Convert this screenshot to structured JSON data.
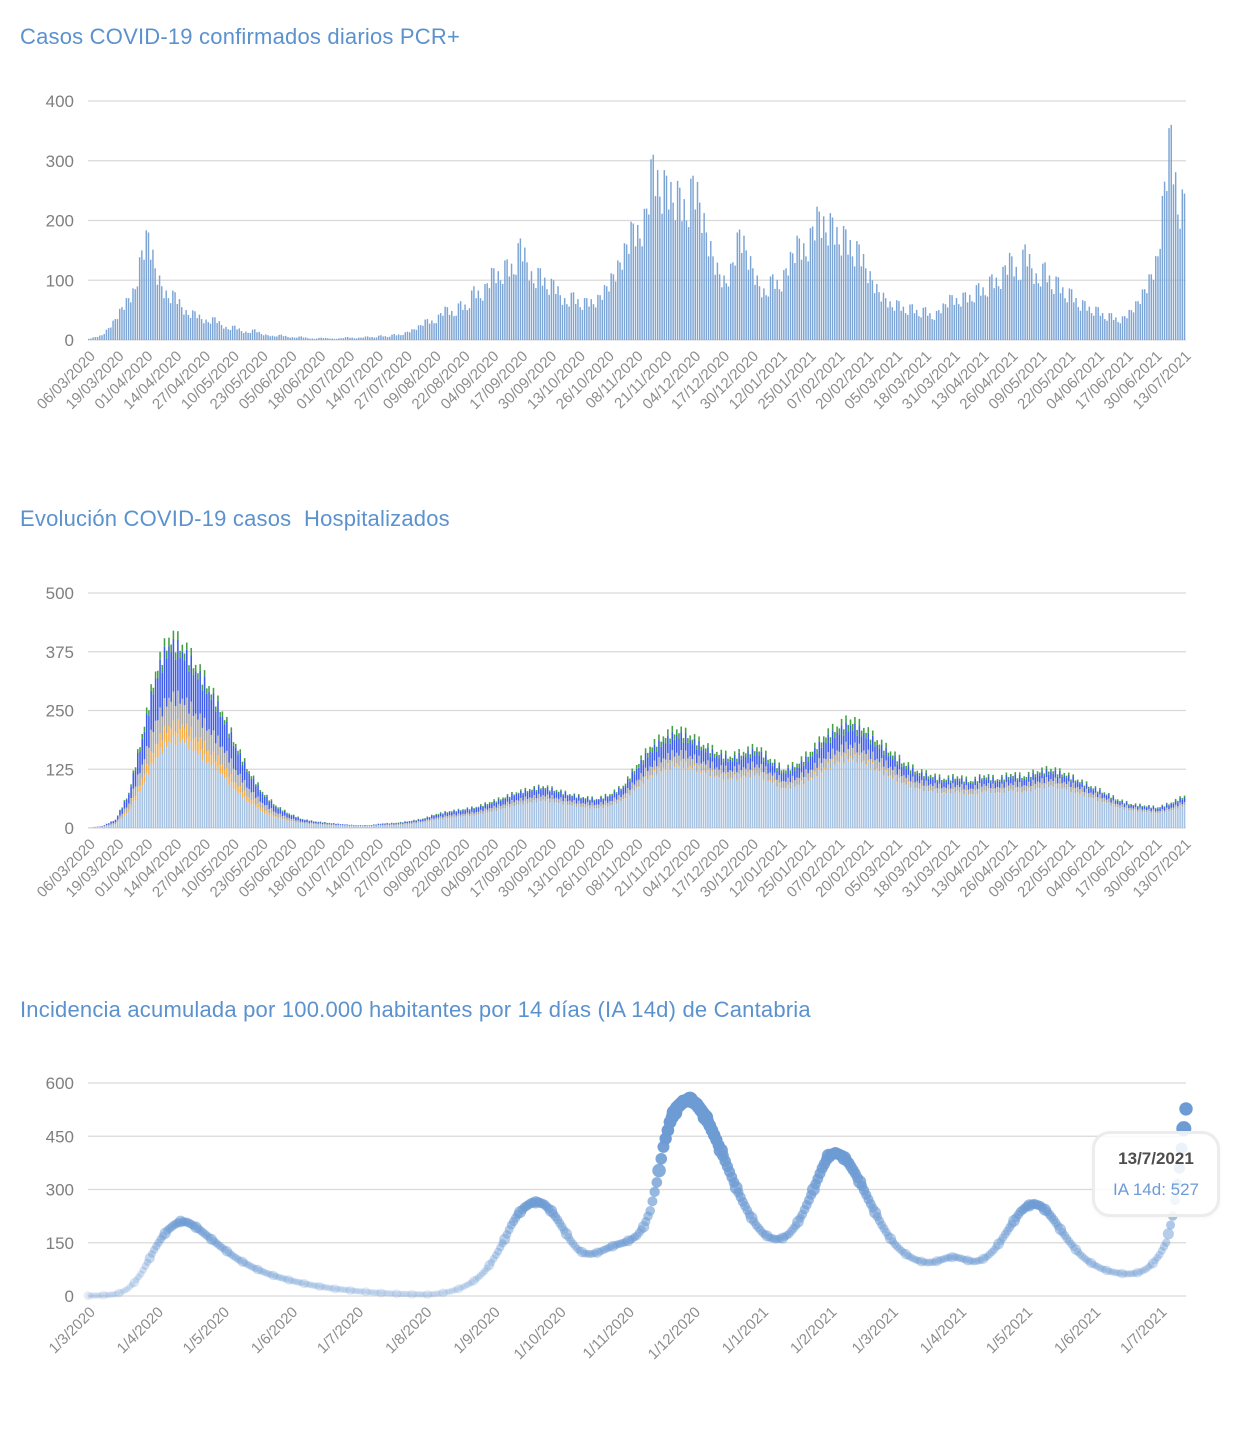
{
  "colors": {
    "title_text": "#5B92CE",
    "axis_text": "#7F7F7F",
    "tick_text": "#8C8C8C",
    "gridline": "#D9D9D9",
    "background": "#FFFFFF"
  },
  "tooltip": {
    "date_label": "13/7/2021",
    "value_label": "IA 14d: 527"
  },
  "chart_data": [
    {
      "type": "bar",
      "title": "Casos COVID-19 confirmados diarios PCR+",
      "xlabel": "",
      "ylabel": "",
      "ylim": [
        0,
        400
      ],
      "y_ticks": [
        0,
        100,
        200,
        300,
        400
      ],
      "grid": true,
      "legend": "none",
      "bar_color": "#7CA5D6",
      "x_tick_interval_days": 13,
      "sample_interval_days": 3,
      "x_tick_labels": [
        "06/03/2020",
        "19/03/2020",
        "01/04/2020",
        "14/04/2020",
        "27/04/2020",
        "10/05/2020",
        "23/05/2020",
        "05/06/2020",
        "18/06/2020",
        "01/07/2020",
        "14/07/2020",
        "27/07/2020",
        "09/08/2020",
        "22/08/2020",
        "04/09/2020",
        "17/09/2020",
        "30/09/2020",
        "13/10/2020",
        "26/10/2020",
        "08/11/2020",
        "21/11/2020",
        "04/12/2020",
        "17/12/2020",
        "30/12/2020",
        "12/01/2021",
        "25/01/2021",
        "07/02/2021",
        "20/02/2021",
        "05/03/2021",
        "18/03/2021",
        "31/03/2021",
        "13/04/2021",
        "26/04/2021",
        "09/05/2021",
        "22/05/2021",
        "04/06/2021",
        "17/06/2021",
        "30/06/2021",
        "13/07/2021"
      ],
      "values": [
        2,
        5,
        8,
        20,
        35,
        55,
        70,
        85,
        150,
        180,
        120,
        90,
        70,
        80,
        55,
        42,
        48,
        35,
        30,
        38,
        25,
        18,
        24,
        15,
        12,
        18,
        10,
        8,
        6,
        9,
        5,
        4,
        6,
        3,
        2,
        4,
        3,
        2,
        3,
        5,
        3,
        4,
        6,
        4,
        8,
        5,
        10,
        8,
        14,
        18,
        25,
        35,
        28,
        45,
        55,
        40,
        65,
        50,
        90,
        70,
        95,
        120,
        100,
        135,
        110,
        170,
        130,
        95,
        120,
        85,
        100,
        75,
        60,
        80,
        55,
        70,
        60,
        75,
        90,
        110,
        130,
        160,
        195,
        170,
        220,
        310,
        240,
        275,
        230,
        255,
        200,
        275,
        230,
        180,
        140,
        110,
        95,
        130,
        185,
        150,
        120,
        90,
        75,
        110,
        85,
        120,
        145,
        170,
        140,
        190,
        215,
        180,
        205,
        160,
        185,
        140,
        160,
        120,
        100,
        80,
        70,
        55,
        65,
        45,
        60,
        40,
        55,
        35,
        50,
        60,
        75,
        60,
        80,
        65,
        95,
        75,
        110,
        90,
        125,
        140,
        100,
        160,
        120,
        95,
        130,
        85,
        105,
        70,
        85,
        55,
        65,
        45,
        55,
        35,
        45,
        30,
        40,
        50,
        65,
        85,
        110,
        140,
        265,
        360,
        210,
        245
      ]
    },
    {
      "type": "bar",
      "stacked": true,
      "title": "Evolución COVID-19 casos  Hospitalizados",
      "xlabel": "",
      "ylabel": "",
      "ylim": [
        0,
        500
      ],
      "y_ticks": [
        0,
        125,
        250,
        375,
        500
      ],
      "grid": true,
      "legend": "none",
      "x_tick_interval_days": 13,
      "sample_interval_days": 6,
      "x_tick_labels": [
        "06/03/2020",
        "19/03/2020",
        "01/04/2020",
        "14/04/2020",
        "27/04/2020",
        "10/05/2020",
        "23/05/2020",
        "05/06/2020",
        "18/06/2020",
        "01/07/2020",
        "14/07/2020",
        "27/07/2020",
        "09/08/2020",
        "22/08/2020",
        "04/09/2020",
        "17/09/2020",
        "30/09/2020",
        "13/10/2020",
        "26/10/2020",
        "08/11/2020",
        "21/11/2020",
        "04/12/2020",
        "17/12/2020",
        "30/12/2020",
        "12/01/2021",
        "25/01/2021",
        "07/02/2021",
        "20/02/2021",
        "05/03/2021",
        "18/03/2021",
        "31/03/2021",
        "13/04/2021",
        "26/04/2021",
        "09/05/2021",
        "22/05/2021",
        "04/06/2021",
        "17/06/2021",
        "30/06/2021",
        "13/07/2021"
      ],
      "series": [
        {
          "name": "planta-light-blue",
          "color": "#A5C2E3",
          "values": [
            1,
            2,
            8,
            35,
            90,
            150,
            185,
            190,
            165,
            140,
            115,
            80,
            55,
            35,
            22,
            15,
            10,
            8,
            6,
            5,
            4,
            4,
            5,
            6,
            8,
            12,
            18,
            22,
            25,
            28,
            35,
            42,
            50,
            55,
            60,
            55,
            50,
            45,
            42,
            48,
            60,
            85,
            110,
            125,
            135,
            130,
            120,
            110,
            105,
            110,
            115,
            100,
            85,
            90,
            105,
            125,
            140,
            150,
            140,
            125,
            110,
            95,
            85,
            80,
            75,
            78,
            72,
            80,
            75,
            82,
            78,
            85,
            90,
            85,
            75,
            65,
            55,
            45,
            38,
            35,
            32,
            38,
            48
          ]
        },
        {
          "name": "serie-naranja",
          "color": "#F5AC45",
          "values": [
            0,
            0,
            0,
            5,
            15,
            28,
            32,
            30,
            28,
            25,
            20,
            15,
            10,
            6,
            3,
            1,
            0,
            0,
            0,
            0,
            0,
            0,
            0,
            0,
            0,
            0,
            0,
            0,
            0,
            0,
            0,
            0,
            0,
            0,
            0,
            0,
            0,
            0,
            0,
            0,
            1,
            2,
            3,
            3,
            3,
            3,
            3,
            2,
            2,
            2,
            2,
            2,
            1,
            2,
            2,
            3,
            3,
            3,
            3,
            2,
            2,
            2,
            1,
            1,
            1,
            1,
            1,
            1,
            1,
            1,
            1,
            1,
            1,
            1,
            1,
            1,
            1,
            0,
            0,
            0,
            0,
            0,
            1
          ]
        },
        {
          "name": "serie-gris",
          "color": "#A6A6A6",
          "values": [
            0,
            1,
            4,
            12,
            30,
            50,
            60,
            55,
            50,
            45,
            38,
            28,
            18,
            12,
            8,
            5,
            3,
            2,
            2,
            1,
            1,
            1,
            2,
            2,
            3,
            3,
            4,
            5,
            5,
            6,
            7,
            8,
            9,
            10,
            10,
            9,
            8,
            8,
            8,
            9,
            10,
            14,
            18,
            20,
            22,
            20,
            18,
            17,
            16,
            17,
            18,
            16,
            14,
            15,
            17,
            20,
            22,
            24,
            22,
            20,
            18,
            15,
            13,
            12,
            11,
            12,
            11,
            12,
            11,
            12,
            12,
            13,
            13,
            12,
            11,
            9,
            8,
            6,
            5,
            5,
            4,
            5,
            6
          ]
        },
        {
          "name": "serie-azul",
          "color": "#3D5BE8",
          "values": [
            0,
            1,
            5,
            20,
            55,
            90,
            110,
            100,
            90,
            80,
            65,
            48,
            32,
            20,
            12,
            8,
            5,
            3,
            2,
            2,
            1,
            1,
            2,
            2,
            3,
            4,
            6,
            7,
            8,
            9,
            10,
            12,
            14,
            15,
            16,
            14,
            12,
            11,
            10,
            12,
            15,
            25,
            32,
            35,
            38,
            34,
            28,
            25,
            22,
            25,
            28,
            22,
            18,
            22,
            28,
            35,
            38,
            40,
            36,
            30,
            25,
            20,
            17,
            15,
            13,
            14,
            12,
            14,
            13,
            15,
            14,
            16,
            16,
            14,
            12,
            10,
            9,
            7,
            6,
            6,
            6,
            8,
            10
          ]
        },
        {
          "name": "serie-verde",
          "color": "#44A044",
          "values": [
            0,
            0,
            1,
            3,
            10,
            15,
            18,
            15,
            14,
            12,
            10,
            8,
            6,
            4,
            3,
            2,
            1,
            1,
            1,
            0,
            0,
            0,
            1,
            1,
            1,
            1,
            2,
            2,
            2,
            2,
            3,
            3,
            3,
            3,
            3,
            3,
            2,
            2,
            2,
            3,
            4,
            8,
            10,
            12,
            12,
            10,
            8,
            8,
            7,
            8,
            9,
            7,
            6,
            8,
            10,
            12,
            13,
            14,
            12,
            10,
            8,
            7,
            6,
            5,
            5,
            5,
            4,
            5,
            4,
            5,
            5,
            6,
            6,
            5,
            4,
            4,
            3,
            3,
            2,
            2,
            2,
            3,
            4
          ]
        }
      ]
    },
    {
      "type": "scatter",
      "title": "Incidencia acumulada por 100.000 habitantes por 14 días (IA 14d) de Cantabria",
      "xlabel": "",
      "ylabel": "",
      "ylim": [
        0,
        600
      ],
      "y_ticks": [
        0,
        150,
        300,
        450,
        600
      ],
      "grid": true,
      "legend": "none",
      "dot_color": "#6D9BD3",
      "sample_interval_days": 3,
      "x_tick_labels": [
        "1/3/2020",
        "1/4/2020",
        "1/5/2020",
        "1/6/2020",
        "1/7/2020",
        "1/8/2020",
        "1/9/2020",
        "1/10/2020",
        "1/11/2020",
        "1/12/2020",
        "1/1/2021",
        "1/2/2021",
        "1/3/2021",
        "1/4/2021",
        "1/5/2021",
        "1/6/2021",
        "1/7/2021"
      ],
      "x_tick_day_indices": [
        0,
        31,
        61,
        92,
        122,
        153,
        184,
        214,
        245,
        275,
        306,
        337,
        365,
        396,
        426,
        457,
        487
      ],
      "values": [
        1,
        1,
        2,
        3,
        5,
        10,
        20,
        38,
        62,
        95,
        130,
        160,
        185,
        200,
        210,
        208,
        198,
        185,
        170,
        155,
        140,
        126,
        112,
        100,
        90,
        80,
        72,
        64,
        58,
        52,
        47,
        42,
        38,
        34,
        30,
        27,
        24,
        21,
        19,
        17,
        15,
        13,
        12,
        10,
        9,
        8,
        7,
        6,
        6,
        5,
        5,
        4,
        5,
        7,
        10,
        14,
        20,
        28,
        38,
        52,
        70,
        95,
        125,
        160,
        200,
        230,
        250,
        262,
        265,
        258,
        240,
        215,
        185,
        155,
        132,
        120,
        118,
        122,
        130,
        138,
        145,
        150,
        158,
        170,
        195,
        240,
        320,
        420,
        490,
        530,
        548,
        553,
        540,
        515,
        480,
        440,
        395,
        350,
        305,
        265,
        230,
        200,
        178,
        165,
        160,
        163,
        175,
        198,
        230,
        270,
        315,
        360,
        395,
        403,
        395,
        375,
        345,
        310,
        272,
        235,
        200,
        170,
        145,
        127,
        113,
        103,
        97,
        94,
        96,
        102,
        108,
        110,
        106,
        100,
        97,
        101,
        112,
        130,
        155,
        183,
        212,
        238,
        253,
        260,
        254,
        238,
        215,
        188,
        162,
        138,
        117,
        101,
        89,
        79,
        72,
        67,
        64,
        62,
        63,
        67,
        76,
        92,
        116,
        150,
        225,
        360,
        527
      ],
      "annotation": {
        "date_label": "13/7/2021",
        "value_label": "IA 14d: 527",
        "value": 527
      }
    }
  ]
}
